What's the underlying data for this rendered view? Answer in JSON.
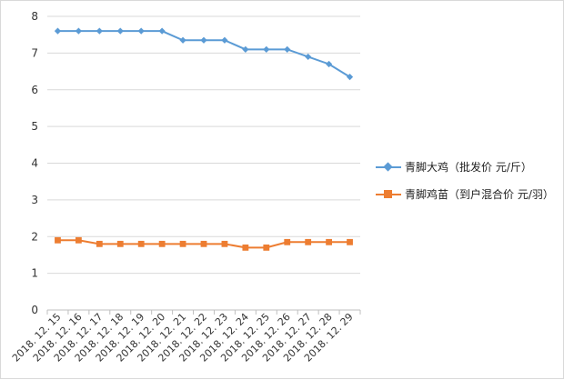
{
  "chart_data": {
    "type": "line",
    "title": "",
    "xlabel": "",
    "ylabel": "",
    "ylim": [
      0,
      8
    ],
    "yticks": [
      0,
      1,
      2,
      3,
      4,
      5,
      6,
      7,
      8
    ],
    "grid": true,
    "legend_position": "right",
    "categories": [
      "2018. 12. 15",
      "2018. 12. 16",
      "2018. 12. 17",
      "2018. 12. 18",
      "2018. 12. 19",
      "2018. 12. 20",
      "2018. 12. 21",
      "2018. 12. 22",
      "2018. 12. 23",
      "2018. 12. 24",
      "2018. 12. 25",
      "2018. 12. 26",
      "2018. 12. 27",
      "2018. 12. 28",
      "2018. 12. 29"
    ],
    "series": [
      {
        "name": "青脚大鸡（批发价  元/斤）",
        "color": "#5b9bd5",
        "marker": "diamond",
        "values": [
          7.6,
          7.6,
          7.6,
          7.6,
          7.6,
          7.6,
          7.35,
          7.35,
          7.35,
          7.1,
          7.1,
          7.1,
          6.9,
          6.7,
          6.35
        ]
      },
      {
        "name": "青脚鸡苗（到户混合价  元/羽）",
        "color": "#ed7d31",
        "marker": "square",
        "values": [
          1.9,
          1.9,
          1.8,
          1.8,
          1.8,
          1.8,
          1.8,
          1.8,
          1.8,
          1.7,
          1.7,
          1.85,
          1.85,
          1.85,
          1.85
        ]
      }
    ]
  }
}
